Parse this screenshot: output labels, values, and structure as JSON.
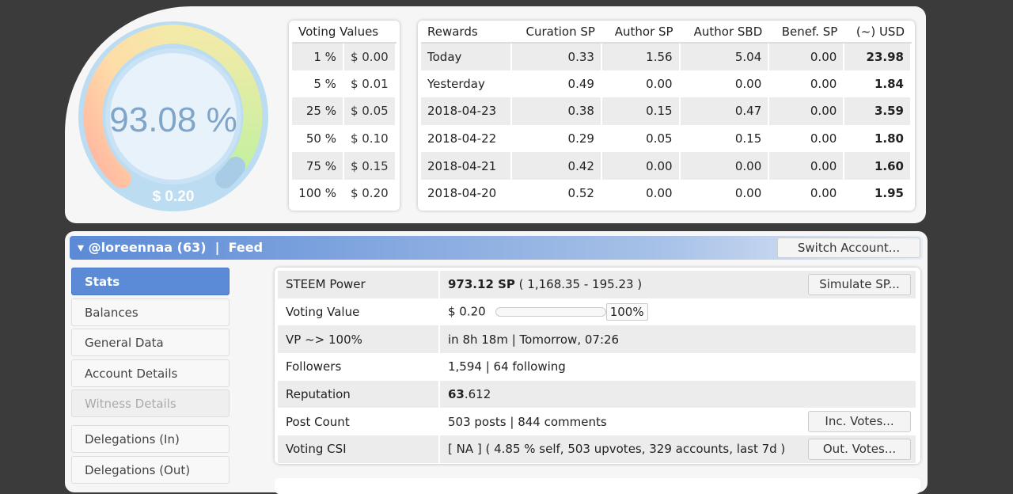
{
  "gauge": {
    "percent_label": "93.08 %",
    "value_label": "$ 0.20",
    "percent": 93.08
  },
  "voting_values": {
    "header": "Voting Values",
    "rows": [
      [
        "1 %",
        "$ 0.00"
      ],
      [
        "5 %",
        "$ 0.01"
      ],
      [
        "25 %",
        "$ 0.05"
      ],
      [
        "50 %",
        "$ 0.10"
      ],
      [
        "75 %",
        "$ 0.15"
      ],
      [
        "100 %",
        "$ 0.20"
      ]
    ]
  },
  "rewards": {
    "headers": [
      "Rewards",
      "Curation SP",
      "Author SP",
      "Author SBD",
      "Benef. SP",
      "(~) USD"
    ],
    "rows": [
      [
        "Today",
        "0.33",
        "1.56",
        "5.04",
        "0.00",
        "23.98"
      ],
      [
        "Yesterday",
        "0.49",
        "0.00",
        "0.00",
        "0.00",
        "1.84"
      ],
      [
        "2018-04-23",
        "0.38",
        "0.15",
        "0.47",
        "0.00",
        "3.59"
      ],
      [
        "2018-04-22",
        "0.29",
        "0.05",
        "0.15",
        "0.00",
        "1.80"
      ],
      [
        "2018-04-21",
        "0.42",
        "0.00",
        "0.00",
        "0.00",
        "1.60"
      ],
      [
        "2018-04-20",
        "0.52",
        "0.00",
        "0.00",
        "0.00",
        "1.95"
      ]
    ]
  },
  "account": {
    "name": "@loreennaa (63)",
    "sep": "|",
    "feed": "Feed",
    "switch_label": "Switch Account..."
  },
  "sidebar": [
    "Stats",
    "Balances",
    "General Data",
    "Account Details",
    "Witness Details",
    "Delegations (In)",
    "Delegations (Out)"
  ],
  "stats": {
    "steem_power": {
      "label": "STEEM Power",
      "value_bold": "973.12 SP",
      "value_rest": " ( 1,168.35 - 195.23 )",
      "button": "Simulate SP..."
    },
    "voting_value": {
      "label": "Voting Value",
      "value": "$ 0.20",
      "slider_pct": "100%"
    },
    "vp": {
      "label": "VP ~> 100%",
      "value": "in 8h 18m | Tomorrow, 07:26"
    },
    "followers": {
      "label": "Followers",
      "value": "1,594 | 64 following"
    },
    "reputation": {
      "label": "Reputation",
      "value_bold": "63",
      "value_rest": ".612"
    },
    "post_count": {
      "label": "Post Count",
      "value": "503 posts | 844 comments",
      "button": "Inc. Votes..."
    },
    "csi": {
      "label": "Voting CSI",
      "value": "[ NA ] ( 4.85 % self, 503 upvotes, 329 accounts, last 7d )",
      "button": "Out. Votes..."
    }
  }
}
